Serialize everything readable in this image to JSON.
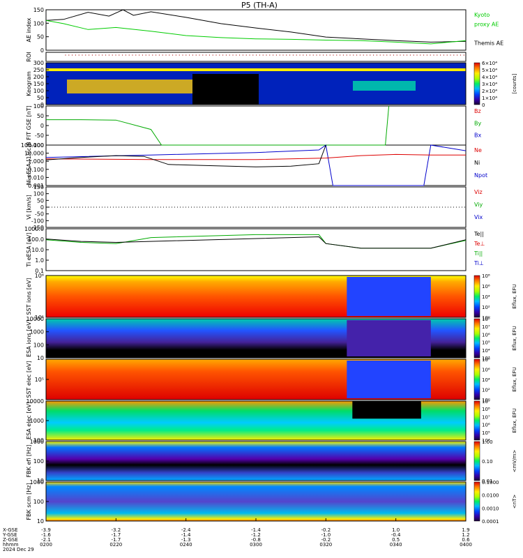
{
  "title": "P5 (TH-A)",
  "date_label": "2024 Dec 29",
  "time_axis": {
    "row_labels": [
      "X-GSE",
      "Y-GSE",
      "Z-GSE",
      "hhmm",
      "2024 Dec 29"
    ],
    "ticks": [
      {
        "time": "0200",
        "x": "-3.9",
        "y": "-1.6",
        "z": "-2.1"
      },
      {
        "time": "0220",
        "x": "-3.2",
        "y": "-1.7",
        "z": "-1.7"
      },
      {
        "time": "0240",
        "x": "-2.4",
        "y": "-1.4",
        "z": "-1.3"
      },
      {
        "time": "0300",
        "x": "-1.4",
        "y": "-1.2",
        "z": "-0.8"
      },
      {
        "time": "0320",
        "x": "-0.2",
        "y": "-1.0",
        "z": "-0.2"
      },
      {
        "time": "0340",
        "x": "1.0",
        "y": "-0.4",
        "z": "0.5"
      },
      {
        "time": "0400",
        "x": "1.9",
        "y": "1.2",
        "z": "0.6"
      }
    ]
  },
  "panels": [
    {
      "id": "ae",
      "ylabel": "AE index",
      "ticks": [
        "150",
        "100",
        "50",
        "0"
      ],
      "right": [
        {
          "text": "Kyoto",
          "color": "#00cc00"
        },
        {
          "text": "proxy AE",
          "color": "#00cc00"
        },
        {
          "text": ""
        },
        {
          "text": "Themis AE",
          "color": "#000000"
        }
      ]
    },
    {
      "id": "roi",
      "ylabel": "ROI",
      "ticks": [],
      "right": []
    },
    {
      "id": "keogram",
      "ylabel": "Keogram",
      "ticks": [
        "300",
        "250",
        "200",
        "150",
        "100",
        "50",
        "0"
      ],
      "colorbar": {
        "labels": [
          "6×10⁴",
          "5×10⁴",
          "4×10⁴",
          "3×10⁴",
          "2×10⁴",
          "1×10⁴",
          "0"
        ],
        "unit": "[counts]"
      }
    },
    {
      "id": "bfit",
      "ylabel": "B FIT GSE [nT]",
      "ticks": [
        "100",
        "50",
        "0",
        "-50",
        "-100"
      ],
      "right": [
        {
          "text": "Bz",
          "color": "#dd0000"
        },
        {
          "text": "By",
          "color": "#00aa00"
        },
        {
          "text": "Bx",
          "color": "#0000cc"
        }
      ]
    },
    {
      "id": "ni",
      "ylabel": "Ni eESA [1/cc]",
      "ticks": [
        "100.000",
        "10.000",
        "1.000",
        "0.100",
        "0.010",
        "0.001"
      ],
      "right": [
        {
          "text": "Ne",
          "color": "#dd0000"
        },
        {
          "text": "Ni",
          "color": "#000000"
        },
        {
          "text": "Npot",
          "color": "#0000cc"
        }
      ]
    },
    {
      "id": "vi",
      "ylabel": "Vi [km/s]",
      "ticks": [
        "150",
        "100",
        "50",
        "0",
        "-50",
        "-100",
        "-150"
      ],
      "right": [
        {
          "text": "Viz",
          "color": "#dd0000"
        },
        {
          "text": "Viy",
          "color": "#00aa00"
        },
        {
          "text": "Vix",
          "color": "#0000cc"
        }
      ]
    },
    {
      "id": "ti",
      "ylabel": "Ti eESA [eV]",
      "ticks": [
        "1000.0",
        "100.0",
        "10.0",
        "1.0",
        "0.1"
      ],
      "right": [
        {
          "text": "Te||",
          "color": "#000000"
        },
        {
          "text": "Te⊥",
          "color": "#dd0000"
        },
        {
          "text": "Ti||",
          "color": "#00aa00"
        },
        {
          "text": "Ti⊥",
          "color": "#0000cc"
        }
      ]
    },
    {
      "id": "sst_i",
      "ylabel": "SST ions [eV]",
      "ticks": [
        "10⁶",
        "10⁵"
      ],
      "colorbar": {
        "labels": [
          "10⁸",
          "10⁶",
          "10⁴",
          "10²",
          "10⁰"
        ],
        "unit": "Eflux, EFU"
      }
    },
    {
      "id": "esa_i",
      "ylabel": "ESA ions [eV]",
      "ticks": [
        "10000",
        "1000",
        "100",
        "10"
      ],
      "colorbar": {
        "labels": [
          "10⁸",
          "10⁷",
          "10⁶",
          "10⁵",
          "10⁴",
          "10³"
        ],
        "unit": "Eflux, EFU"
      }
    },
    {
      "id": "sst_e",
      "ylabel": "SST elec [eV]",
      "ticks": [
        "10⁵"
      ],
      "colorbar": {
        "labels": [
          "10⁸",
          "10⁶",
          "10⁴",
          "10²",
          "10⁰"
        ],
        "unit": "Eflux, EFU"
      }
    },
    {
      "id": "esa_e",
      "ylabel": "ESA elec [eV]",
      "ticks": [
        "10000",
        "1000",
        "100"
      ],
      "colorbar": {
        "labels": [
          "10⁹",
          "10⁸",
          "10⁷",
          "10⁶",
          "10⁵",
          "10⁴"
        ],
        "unit": "Eflux, EFU"
      }
    },
    {
      "id": "fbk_e",
      "ylabel": "FBK efi [Hz]",
      "ticks": [
        "1000",
        "100",
        "10"
      ],
      "colorbar": {
        "labels": [
          "1.00",
          "0.10",
          "0.01"
        ],
        "unit": "<mV/m>"
      }
    },
    {
      "id": "fbk_b",
      "ylabel": "FBK scm [Hz]",
      "ticks": [
        "1000",
        "100",
        "10"
      ],
      "colorbar": {
        "labels": [
          "0.1000",
          "0.0100",
          "0.0010",
          "0.0001"
        ],
        "unit": "<nT>"
      }
    }
  ],
  "chart_data": {
    "type": "line",
    "title": "P5 (TH-A)",
    "x_unit": "time (UT hhmm)",
    "series": [
      {
        "panel": "ae",
        "name": "Themis AE",
        "color": "#000000",
        "x": [
          "0200",
          "0205",
          "0212",
          "0218",
          "0222",
          "0225",
          "0230",
          "0240",
          "0250",
          "0300",
          "0310",
          "0320",
          "0330",
          "0340",
          "0350",
          "0400"
        ],
        "values": [
          108,
          112,
          140,
          125,
          150,
          128,
          142,
          120,
          95,
          78,
          62,
          42,
          35,
          28,
          22,
          25
        ]
      },
      {
        "panel": "ae",
        "name": "Kyoto proxy AE",
        "color": "#00cc00",
        "x": [
          "0200",
          "0205",
          "0212",
          "0220",
          "0230",
          "0240",
          "0250",
          "0300",
          "0310",
          "0320",
          "0330",
          "0340",
          "0350",
          "0400"
        ],
        "values": [
          108,
          95,
          72,
          80,
          65,
          48,
          40,
          35,
          33,
          30,
          28,
          22,
          15,
          28
        ]
      },
      {
        "panel": "bfit",
        "name": "By",
        "color": "#00aa00",
        "x": [
          "0200",
          "0210",
          "0220",
          "0230",
          "0233",
          "0337",
          "0338"
        ],
        "values": [
          30,
          30,
          28,
          -20,
          -100,
          -100,
          100
        ]
      },
      {
        "panel": "ni",
        "name": "Npot",
        "color": "#0000cc",
        "x": [
          "0200",
          "0230",
          "0300",
          "0318",
          "0320",
          "0322",
          "0348",
          "0350",
          "0400"
        ],
        "values": [
          3,
          6,
          12,
          25,
          100,
          0.001,
          0.001,
          100,
          20
        ]
      },
      {
        "panel": "ni",
        "name": "Ne",
        "color": "#dd0000",
        "x": [
          "0200",
          "0230",
          "0300",
          "0320",
          "0330",
          "0340",
          "0350",
          "0400"
        ],
        "values": [
          2,
          1.6,
          1.6,
          2.5,
          5,
          7,
          6,
          6
        ]
      },
      {
        "panel": "ni",
        "name": "Ni",
        "color": "#000000",
        "x": [
          "0200",
          "0210",
          "0220",
          "0228",
          "0235",
          "0245",
          "0300",
          "0310",
          "0318",
          "0320"
        ],
        "values": [
          1.5,
          3,
          5,
          4,
          0.4,
          0.3,
          0.2,
          0.25,
          0.5,
          100
        ]
      },
      {
        "panel": "ti",
        "name": "Ti||",
        "color": "#00aa00",
        "x": [
          "0200",
          "0210",
          "0220",
          "0230",
          "0300",
          "0318",
          "0320",
          "0330",
          "0350",
          "0400"
        ],
        "values": [
          150,
          80,
          60,
          250,
          500,
          500,
          60,
          20,
          20,
          130
        ]
      },
      {
        "panel": "ti",
        "name": "Te||",
        "color": "#000000",
        "x": [
          "0200",
          "0210",
          "0220",
          "0318",
          "0320",
          "0330",
          "0350",
          "0400"
        ],
        "values": [
          180,
          100,
          80,
          300,
          60,
          20,
          20,
          150
        ]
      }
    ]
  }
}
